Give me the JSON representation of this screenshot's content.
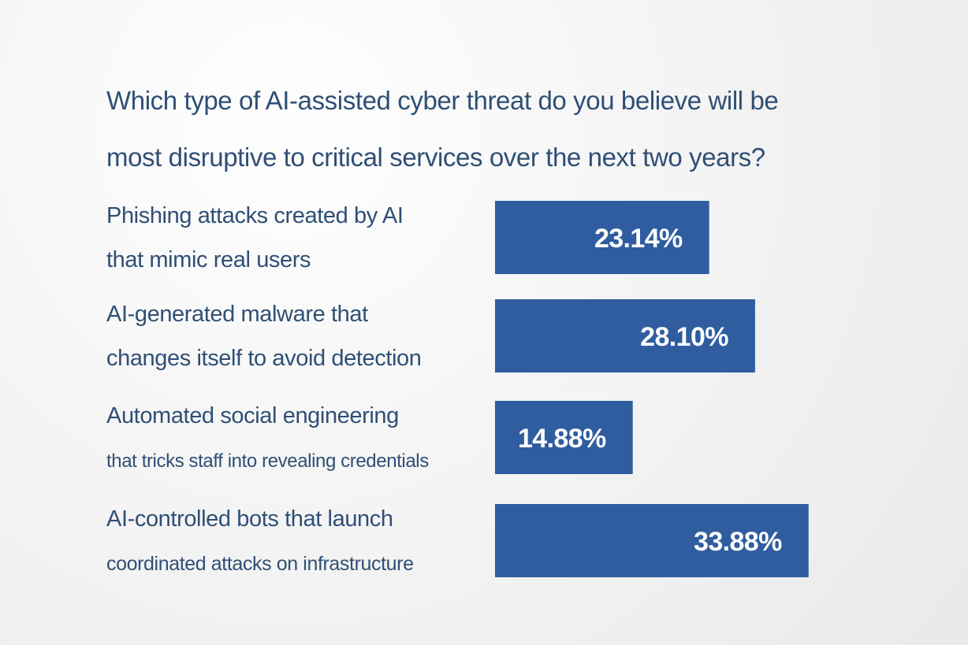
{
  "chart_data": {
    "type": "bar",
    "orientation": "horizontal",
    "title": "Which type of AI-assisted cyber threat do you believe will be\nmost disruptive to critical services over the next two years?",
    "categories": [
      [
        "Phishing attacks created by AI",
        "that mimic real users"
      ],
      [
        "AI-generated malware that",
        "changes itself to avoid detection"
      ],
      [
        "Automated social engineering",
        "that tricks staff into revealing credentials"
      ],
      [
        "AI-controlled bots that launch",
        "coordinated attacks on infrastructure"
      ]
    ],
    "values": [
      23.14,
      28.1,
      14.88,
      33.88
    ],
    "value_labels": [
      "23.14%",
      "28.10%",
      "14.88%",
      "33.88%"
    ],
    "unit": "%",
    "xlim": [
      0,
      40
    ],
    "colors": {
      "bar": "#2f5d9f",
      "text": "#2f4f75",
      "value_text": "#ffffff"
    },
    "grid": false,
    "legend": "none"
  }
}
